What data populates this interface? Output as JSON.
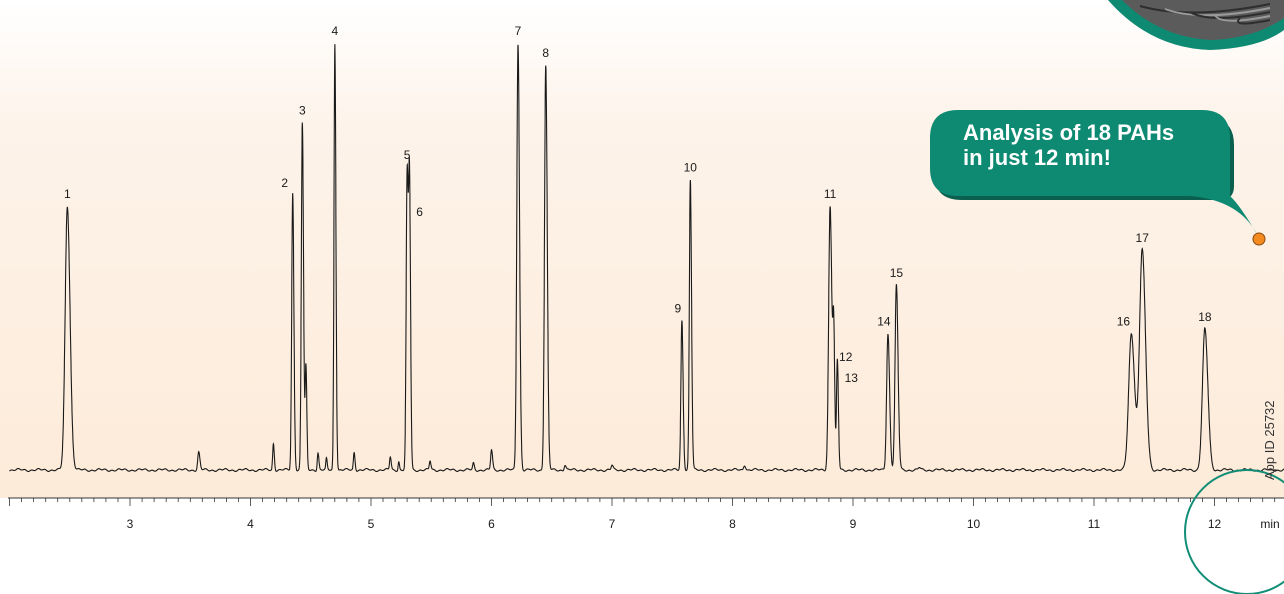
{
  "colors": {
    "background_top": "#ffffff",
    "background_band": "#fdebd9",
    "trace": "#1a1a1a",
    "callout_fill": "#0f8a72",
    "callout_shadow": "#0a5f4f",
    "callout_dot": "#f28a1e",
    "circle_outline": "#128e77"
  },
  "callout": {
    "line1": "Analysis of 18 PAHs",
    "line2": "in just 12 min!"
  },
  "app_id": "App ID 25732",
  "chart_data": {
    "type": "line",
    "title": "",
    "xlabel": "min",
    "ylabel": "",
    "x_unit": "min",
    "xlim": [
      2.0,
      12.6
    ],
    "ylim": [
      0,
      1.0
    ],
    "grid": false,
    "x_ticks": [
      3,
      4,
      5,
      6,
      7,
      8,
      9,
      10,
      11,
      12
    ],
    "peaks": [
      {
        "label": "1",
        "rt": 2.48,
        "height": 0.6,
        "width": 0.018
      },
      {
        "label": "2",
        "rt": 4.35,
        "height": 0.63,
        "width": 0.008
      },
      {
        "label": "3",
        "rt": 4.43,
        "height": 0.79,
        "width": 0.008
      },
      {
        "label": "4",
        "rt": 4.7,
        "height": 0.97,
        "width": 0.007
      },
      {
        "label": "5",
        "rt": 5.3,
        "height": 0.68,
        "width": 0.008
      },
      {
        "label": "6",
        "rt": 5.32,
        "height": 0.6,
        "width": 0.007
      },
      {
        "label": "7",
        "rt": 6.22,
        "height": 0.97,
        "width": 0.01
      },
      {
        "label": "8",
        "rt": 6.45,
        "height": 0.92,
        "width": 0.01
      },
      {
        "label": "9",
        "rt": 7.58,
        "height": 0.34,
        "width": 0.008
      },
      {
        "label": "10",
        "rt": 7.65,
        "height": 0.66,
        "width": 0.008
      },
      {
        "label": "11",
        "rt": 8.81,
        "height": 0.6,
        "width": 0.012
      },
      {
        "label": "12",
        "rt": 8.84,
        "height": 0.28,
        "width": 0.007
      },
      {
        "label": "13",
        "rt": 8.87,
        "height": 0.25,
        "width": 0.007
      },
      {
        "label": "14",
        "rt": 9.29,
        "height": 0.31,
        "width": 0.011
      },
      {
        "label": "15",
        "rt": 9.36,
        "height": 0.42,
        "width": 0.011
      },
      {
        "label": "16",
        "rt": 11.31,
        "height": 0.31,
        "width": 0.022
      },
      {
        "label": "17",
        "rt": 11.4,
        "height": 0.5,
        "width": 0.022
      },
      {
        "label": "18",
        "rt": 11.92,
        "height": 0.32,
        "width": 0.02
      }
    ],
    "minor_peaks": [
      {
        "rt": 3.57,
        "height": 0.04,
        "width": 0.008
      },
      {
        "rt": 4.19,
        "height": 0.06,
        "width": 0.006
      },
      {
        "rt": 4.46,
        "height": 0.23,
        "width": 0.006
      },
      {
        "rt": 4.56,
        "height": 0.04,
        "width": 0.006
      },
      {
        "rt": 4.63,
        "height": 0.025,
        "width": 0.005
      },
      {
        "rt": 4.86,
        "height": 0.04,
        "width": 0.006
      },
      {
        "rt": 5.16,
        "height": 0.03,
        "width": 0.006
      },
      {
        "rt": 5.23,
        "height": 0.02,
        "width": 0.005
      },
      {
        "rt": 5.49,
        "height": 0.02,
        "width": 0.006
      },
      {
        "rt": 5.85,
        "height": 0.015,
        "width": 0.006
      },
      {
        "rt": 6.0,
        "height": 0.045,
        "width": 0.007
      },
      {
        "rt": 6.61,
        "height": 0.012,
        "width": 0.007
      },
      {
        "rt": 7.0,
        "height": 0.01,
        "width": 0.007
      },
      {
        "rt": 8.1,
        "height": 0.012,
        "width": 0.008
      },
      {
        "rt": 9.55,
        "height": 0.005,
        "width": 0.008
      }
    ]
  }
}
